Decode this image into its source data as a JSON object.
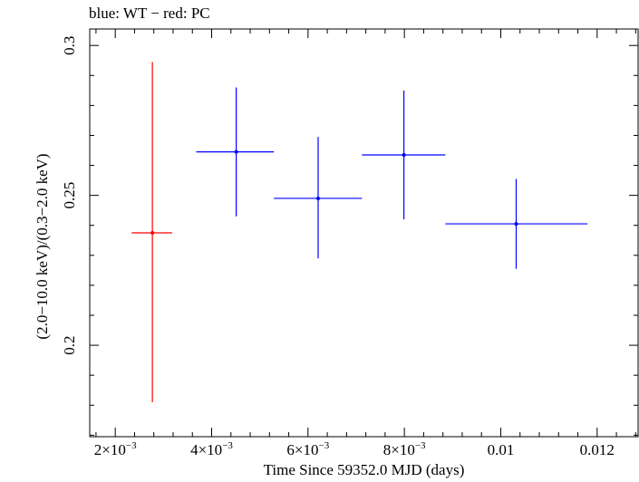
{
  "title": "blue: WT − red: PC",
  "chart_data": {
    "type": "scatter",
    "title": "blue: WT − red: PC",
    "xlabel": "Time Since 59352.0 MJD (days)",
    "ylabel": "(2.0−10.0 keV)/(0.3−2.0 keV)",
    "xlim": [
      0.00147,
      0.01285
    ],
    "ylim": [
      0.1695,
      0.3055
    ],
    "x_ticks": [
      {
        "value": 0.002,
        "label": "2×10",
        "exp": "−3"
      },
      {
        "value": 0.004,
        "label": "4×10",
        "exp": "−3"
      },
      {
        "value": 0.006,
        "label": "6×10",
        "exp": "−3"
      },
      {
        "value": 0.008,
        "label": "8×10",
        "exp": "−3"
      },
      {
        "value": 0.01,
        "label": "0.01",
        "exp": ""
      },
      {
        "value": 0.012,
        "label": "0.012",
        "exp": ""
      }
    ],
    "y_ticks": [
      {
        "value": 0.2,
        "label": "0.2"
      },
      {
        "value": 0.25,
        "label": "0.25"
      },
      {
        "value": 0.3,
        "label": "0.3"
      }
    ],
    "series": [
      {
        "name": "PC",
        "color": "#ff0000",
        "points": [
          {
            "x": 0.00277,
            "xlo": 0.00234,
            "xhi": 0.00318,
            "y": 0.2375,
            "ylo": 0.181,
            "yhi": 0.2945
          }
        ]
      },
      {
        "name": "WT",
        "color": "#0000ff",
        "points": [
          {
            "x": 0.00451,
            "xlo": 0.00368,
            "xhi": 0.00529,
            "y": 0.2645,
            "ylo": 0.243,
            "yhi": 0.286
          },
          {
            "x": 0.00621,
            "xlo": 0.00529,
            "xhi": 0.00712,
            "y": 0.249,
            "ylo": 0.229,
            "yhi": 0.2695
          },
          {
            "x": 0.00799,
            "xlo": 0.00712,
            "xhi": 0.00885,
            "y": 0.2635,
            "ylo": 0.242,
            "yhi": 0.285
          },
          {
            "x": 0.01032,
            "xlo": 0.00885,
            "xhi": 0.0118,
            "y": 0.2405,
            "ylo": 0.2255,
            "yhi": 0.2555
          }
        ]
      }
    ]
  }
}
